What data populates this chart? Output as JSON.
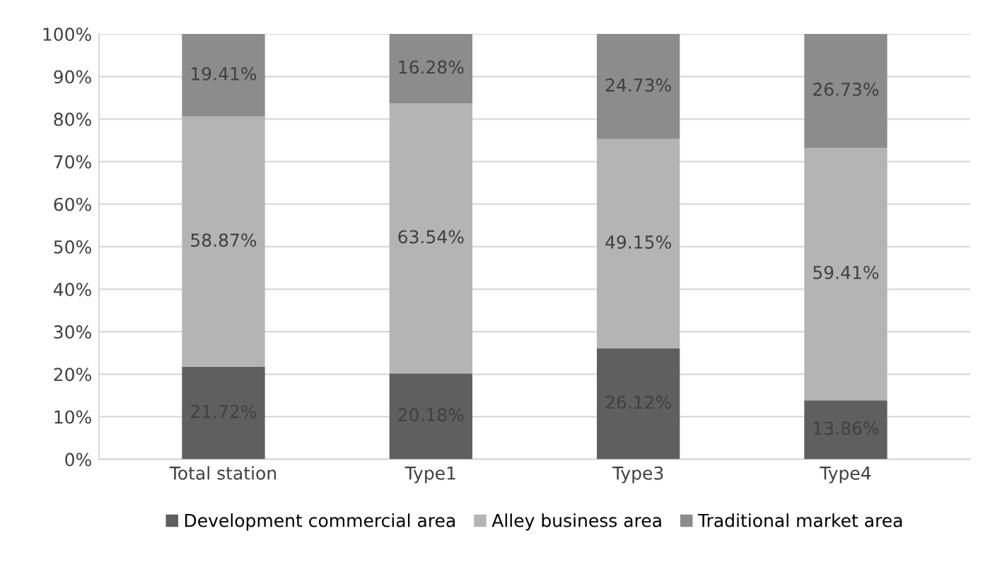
{
  "chart_data": {
    "type": "bar",
    "stacked": true,
    "categories": [
      "Total station",
      "Type1",
      "Type3",
      "Type4"
    ],
    "series": [
      {
        "name": "Development commercial area",
        "color": "#5f5f5f",
        "values": [
          21.72,
          20.18,
          26.12,
          13.86
        ],
        "value_labels": [
          "21.72%",
          "20.18%",
          "26.12%",
          "13.86%"
        ]
      },
      {
        "name": "Alley business area",
        "color": "#b4b4b4",
        "values": [
          58.87,
          63.54,
          49.15,
          59.41
        ],
        "value_labels": [
          "58.87%",
          "63.54%",
          "49.15%",
          "59.41%"
        ]
      },
      {
        "name": "Traditional market area",
        "color": "#8c8c8c",
        "values": [
          19.41,
          16.28,
          24.73,
          26.73
        ],
        "value_labels": [
          "19.41%",
          "16.28%",
          "24.73%",
          "26.73%"
        ]
      }
    ],
    "ylim": [
      0,
      100
    ],
    "yticks": [
      {
        "value": 0,
        "label": "0%"
      },
      {
        "value": 10,
        "label": "10%"
      },
      {
        "value": 20,
        "label": "20%"
      },
      {
        "value": 30,
        "label": "30%"
      },
      {
        "value": 40,
        "label": "40%"
      },
      {
        "value": 50,
        "label": "50%"
      },
      {
        "value": 60,
        "label": "60%"
      },
      {
        "value": 70,
        "label": "70%"
      },
      {
        "value": 80,
        "label": "80%"
      },
      {
        "value": 90,
        "label": "90%"
      },
      {
        "value": 100,
        "label": "100%"
      }
    ],
    "grid": "y",
    "legend": "bottom"
  }
}
